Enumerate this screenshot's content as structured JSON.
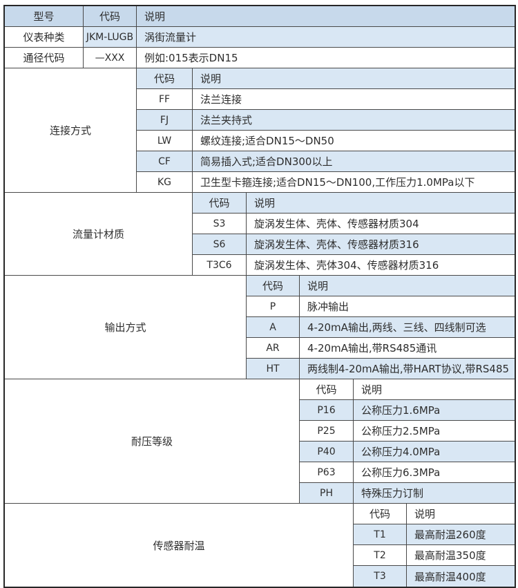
{
  "table": {
    "header": {
      "model": "型号",
      "code": "代码",
      "desc": "说明"
    },
    "rows": [
      {
        "label": "仪表种类",
        "code": "JKM-LUGB",
        "desc": "涡街流量计"
      },
      {
        "label": "通径代码",
        "code": "—XXX",
        "desc": "例如:015表示DN15"
      }
    ],
    "sections": [
      {
        "label": "连接方式",
        "code_header": "代码",
        "desc_header": "说明",
        "rows": [
          {
            "code": "FF",
            "desc": "法兰连接"
          },
          {
            "code": "FJ",
            "desc": "法兰夹持式"
          },
          {
            "code": "LW",
            "desc": "螺纹连接;适合DN15～DN50"
          },
          {
            "code": "CF",
            "desc": "简易插入式;适合DN300以上"
          },
          {
            "code": "KG",
            "desc": "卫生型卡箍连接;适合DN15～DN100,工作压力1.0MPa以下"
          }
        ]
      },
      {
        "label": "流量计材质",
        "code_header": "代码",
        "desc_header": "说明",
        "rows": [
          {
            "code": "S3",
            "desc": "旋涡发生体、壳体、传感器材质304"
          },
          {
            "code": "S6",
            "desc": "旋涡发生体、壳体、传感器材质316"
          },
          {
            "code": "T3C6",
            "desc": "旋涡发生体、壳体304、传感器材质316"
          }
        ]
      },
      {
        "label": "输出方式",
        "code_header": "代码",
        "desc_header": "说明",
        "rows": [
          {
            "code": "P",
            "desc": "脉冲输出"
          },
          {
            "code": "A",
            "desc": "4-20mA输出,两线、三线、四线制可选"
          },
          {
            "code": "AR",
            "desc": "4-20mA输出,带RS485通讯"
          },
          {
            "code": "HT",
            "desc": "两线制4-20mA输出,带HART协议,带RS485"
          }
        ]
      },
      {
        "label": "耐压等级",
        "code_header": "代码",
        "desc_header": "说明",
        "rows": [
          {
            "code": "P16",
            "desc": "公称压力1.6MPa"
          },
          {
            "code": "P25",
            "desc": "公称压力2.5MPa"
          },
          {
            "code": "P40",
            "desc": "公称压力4.0MPa"
          },
          {
            "code": "P63",
            "desc": "公称压力6.3MPa"
          },
          {
            "code": "PH",
            "desc": "特殊压力订制"
          }
        ]
      },
      {
        "label": "传感器耐温",
        "code_header": "代码",
        "desc_header": "说明",
        "rows": [
          {
            "code": "T1",
            "desc": "最高耐温260度"
          },
          {
            "code": "T2",
            "desc": "最高耐温350度"
          },
          {
            "code": "T3",
            "desc": "最高耐温400度"
          }
        ]
      }
    ],
    "colors": {
      "header_bg": "#c7d9eb",
      "stripe_bg": "#d9e7f4",
      "border": "#484848",
      "outer_border": "#262626"
    }
  }
}
